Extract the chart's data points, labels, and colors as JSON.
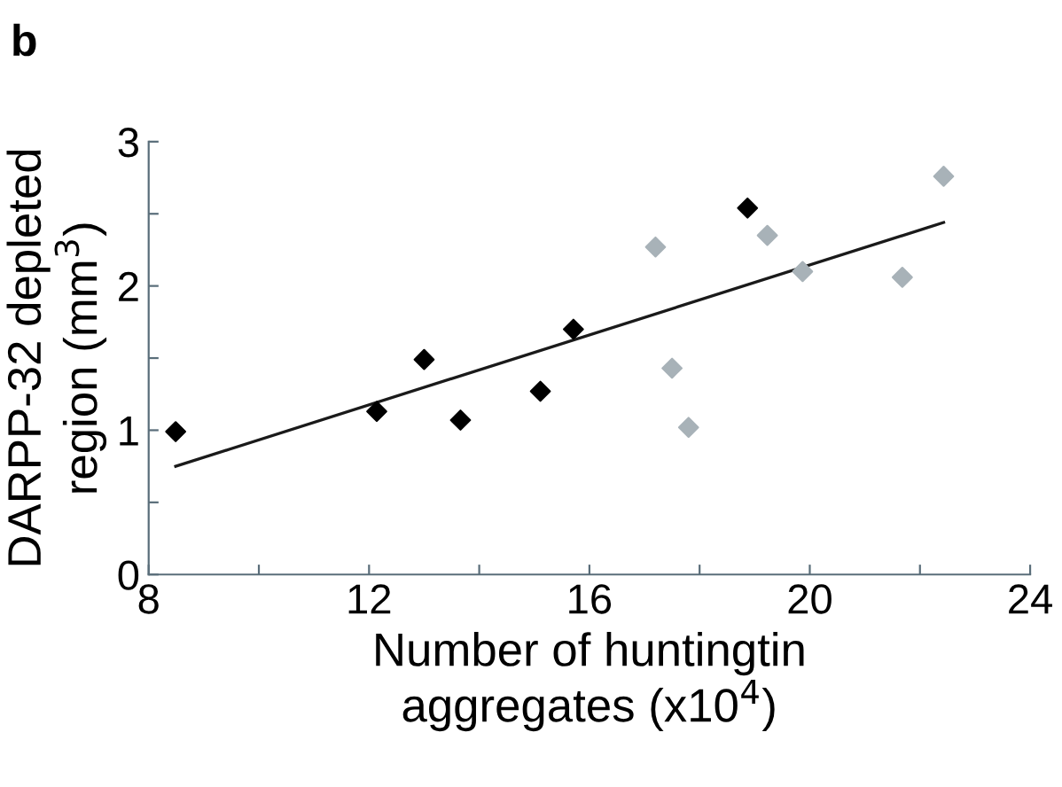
{
  "chart_data": {
    "type": "scatter",
    "xlabel": "Number of huntingtin\naggregates (x10$^{4}$)",
    "ylabel": "DARPP-32 depleted\nregion (mm$^{3}$)",
    "annotations": [
      "b"
    ],
    "marker": "diamond",
    "grid": false,
    "legend": false,
    "xlim": [
      8,
      24
    ],
    "ylim": [
      0,
      3
    ],
    "xticks": [
      8,
      {
        "value": 10,
        "label": null
      },
      12,
      {
        "value": 14,
        "label": null
      },
      16,
      {
        "value": 18,
        "label": null
      },
      20,
      {
        "value": 22,
        "label": null
      },
      24
    ],
    "yticks": [
      0,
      {
        "value": 0.5,
        "label": null
      },
      1,
      {
        "value": 1.5,
        "label": null
      },
      2,
      {
        "value": 2.5,
        "label": null
      },
      3
    ],
    "series": [
      {
        "color": "#000000",
        "x": [
          8.49,
          12.14,
          13.0,
          13.66,
          15.11,
          15.71,
          18.87
        ],
        "values": [
          0.99,
          1.13,
          1.49,
          1.07,
          1.27,
          1.7,
          2.54
        ]
      },
      {
        "color": "#a8b2b8",
        "x": [
          17.2,
          17.5,
          17.8,
          19.23,
          19.87,
          21.68,
          22.43
        ],
        "values": [
          2.27,
          1.43,
          1.02,
          2.35,
          2.1,
          2.06,
          2.76
        ]
      },
      {
        "type": "line",
        "color": "#1a1a1a",
        "marker": "none",
        "x": [
          8.49,
          22.43
        ],
        "values": [
          0.75,
          2.44
        ]
      }
    ]
  }
}
